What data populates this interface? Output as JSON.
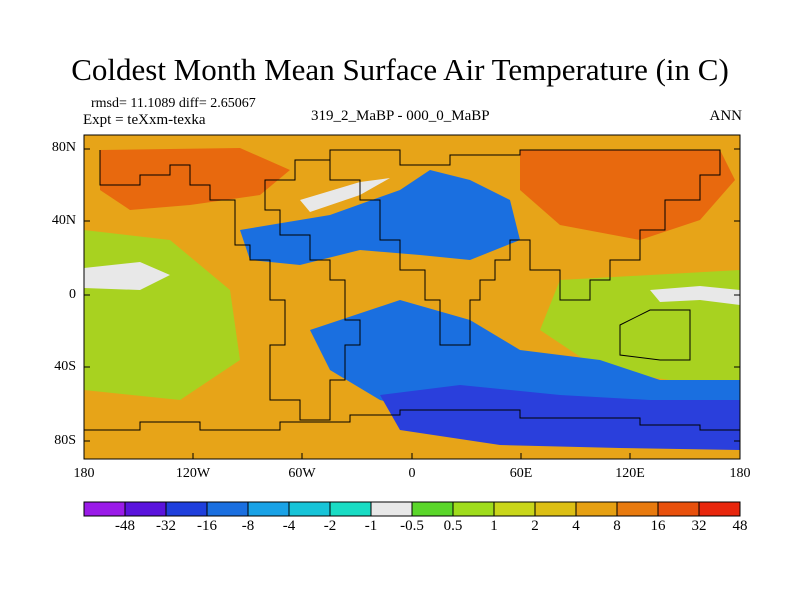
{
  "title": "Coldest Month Mean Surface Air Temperature (in C)",
  "stats": {
    "rmsd_text": "rmsd= 11.1089 diff= 2.65067"
  },
  "experiment": "Expt = teXxm-texka",
  "difference_label": "319_2_MaBP - 000_0_MaBP",
  "season": "ANN",
  "map": {
    "lat_labels": [
      "80N",
      "40N",
      "0",
      "40S",
      "80S"
    ],
    "lon_labels": [
      "180",
      "120W",
      "60W",
      "0",
      "60E",
      "120E",
      "180"
    ]
  },
  "colorbar": {
    "labels": [
      "-48",
      "-32",
      "-16",
      "-8",
      "-4",
      "-2",
      "-1",
      "-0.5",
      "0.5",
      "1",
      "2",
      "4",
      "8",
      "16",
      "32",
      "48"
    ],
    "colors": [
      "#9a1be8",
      "#5a13dc",
      "#1f3fdc",
      "#1a6fe0",
      "#19a2e6",
      "#17c4d8",
      "#19dcc4",
      "#e8e8e8",
      "#5ad62a",
      "#9fdc1c",
      "#c9d61a",
      "#dcbf14",
      "#e6a012",
      "#e87a0e",
      "#e8500c",
      "#e8260c"
    ]
  },
  "colors": {
    "warm_base": "#e7a418",
    "hot": "#e8690e",
    "ocean_mid": "#a8d220",
    "cold": "#1a6fe0",
    "very_cold": "#2a3fdc",
    "neutral": "#e8e8e8"
  }
}
